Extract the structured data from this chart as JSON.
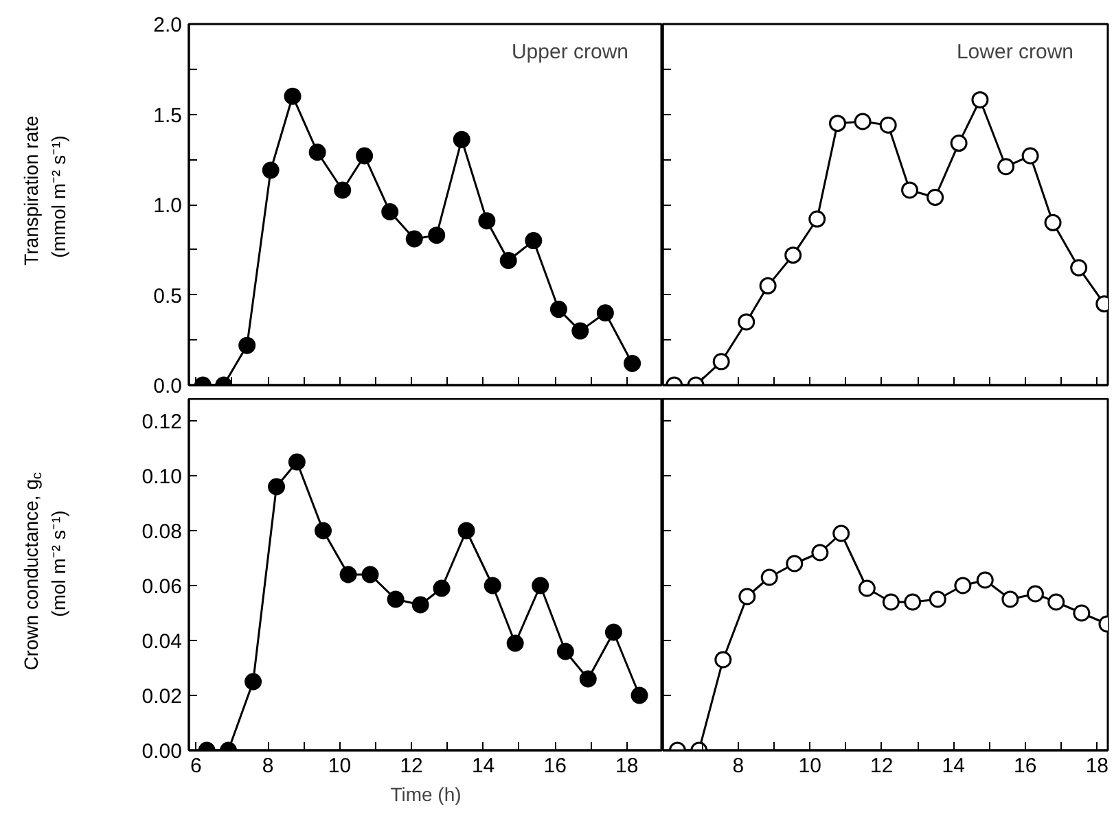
{
  "chart_data": [
    {
      "type": "line",
      "ylabel": "Transpiration rate\n(mmol m⁻² s⁻¹)",
      "annotations": [
        "Upper crown"
      ],
      "marker": "circle",
      "grid": false,
      "tick_labels": "y",
      "xlim": [
        5.8,
        19.0
      ],
      "ylim": [
        0,
        2.0
      ],
      "xticks": [
        {
          "value": 6,
          "label": null
        },
        {
          "value": 7,
          "label": null
        },
        {
          "value": 8,
          "label": null
        },
        {
          "value": 9,
          "label": null
        },
        {
          "value": 10,
          "label": null
        },
        {
          "value": 11,
          "label": null
        },
        {
          "value": 12,
          "label": null
        },
        {
          "value": 13,
          "label": null
        },
        {
          "value": 14,
          "label": null
        },
        {
          "value": 15,
          "label": null
        },
        {
          "value": 16,
          "label": null
        },
        {
          "value": 17,
          "label": null
        },
        {
          "value": 18,
          "label": null
        }
      ],
      "yticks": [
        {
          "value": 0,
          "label": "0.0"
        },
        {
          "value": 0.25,
          "label": null
        },
        {
          "value": 0.5,
          "label": "0.5"
        },
        {
          "value": 0.75,
          "label": null
        },
        {
          "value": 1.0,
          "label": "1.0"
        },
        {
          "value": 1.25,
          "label": null
        },
        {
          "value": 1.5,
          "label": "1.5"
        },
        {
          "value": 1.75,
          "label": null
        },
        {
          "value": 2.0,
          "label": "2.0"
        }
      ],
      "series": [
        {
          "color": "#000000",
          "x": [
            6.19,
            6.77,
            7.42,
            8.08,
            8.69,
            9.38,
            10.08,
            10.69,
            11.4,
            12.08,
            12.7,
            13.4,
            14.1,
            14.7,
            15.4,
            16.1,
            16.7,
            17.4,
            18.15
          ],
          "values": [
            0,
            0,
            0.22,
            1.19,
            1.6,
            1.29,
            1.08,
            1.27,
            0.96,
            0.81,
            0.83,
            1.36,
            0.91,
            0.69,
            0.8,
            0.42,
            0.3,
            0.4,
            0.12
          ]
        }
      ]
    },
    {
      "type": "line",
      "annotations": [
        "Lower crown"
      ],
      "marker": "circle",
      "grid": false,
      "tick_labels": false,
      "xlim": [
        5.9,
        18.3
      ],
      "ylim": [
        0,
        2.0
      ],
      "xticks": [
        {
          "value": 7,
          "label": null
        },
        {
          "value": 8,
          "label": null
        },
        {
          "value": 9,
          "label": null
        },
        {
          "value": 10,
          "label": null
        },
        {
          "value": 11,
          "label": null
        },
        {
          "value": 12,
          "label": null
        },
        {
          "value": 13,
          "label": null
        },
        {
          "value": 14,
          "label": null
        },
        {
          "value": 15,
          "label": null
        },
        {
          "value": 16,
          "label": null
        },
        {
          "value": 17,
          "label": null
        },
        {
          "value": 18,
          "label": null
        }
      ],
      "yticks": [
        {
          "value": 0.25,
          "label": null
        },
        {
          "value": 0.5,
          "label": null
        },
        {
          "value": 0.75,
          "label": null
        },
        {
          "value": 1.0,
          "label": null
        },
        {
          "value": 1.25,
          "label": null
        },
        {
          "value": 1.5,
          "label": null
        },
        {
          "value": 1.75,
          "label": null
        }
      ],
      "series": [
        {
          "color": "#ffffff",
          "x": [
            6.22,
            6.82,
            7.53,
            8.23,
            8.83,
            9.53,
            10.2,
            10.77,
            11.47,
            12.18,
            12.78,
            13.49,
            14.15,
            14.74,
            15.46,
            16.14,
            16.77,
            17.49,
            18.2
          ],
          "values": [
            0,
            0,
            0.13,
            0.35,
            0.55,
            0.72,
            0.92,
            1.45,
            1.46,
            1.44,
            1.08,
            1.04,
            1.34,
            1.58,
            1.21,
            1.27,
            0.9,
            0.65,
            0.45
          ]
        }
      ]
    },
    {
      "type": "line",
      "ylabel": "Crown conductance, g$_{c}$\n(mol m⁻² s⁻¹)",
      "xlabel": "Time (h)",
      "marker": "circle",
      "grid": false,
      "xlim": [
        5.8,
        19.0
      ],
      "ylim": [
        0,
        0.128
      ],
      "xticks": [
        6,
        {
          "value": 7,
          "label": null
        },
        8,
        {
          "value": 9,
          "label": null
        },
        10,
        {
          "value": 11,
          "label": null
        },
        12,
        {
          "value": 13,
          "label": null
        },
        14,
        {
          "value": 15,
          "label": null
        },
        16,
        {
          "value": 17,
          "label": null
        },
        18
      ],
      "yticks": [
        {
          "value": 0,
          "label": "0.00"
        },
        {
          "value": 0.02,
          "label": "0.02"
        },
        {
          "value": 0.04,
          "label": "0.04"
        },
        {
          "value": 0.06,
          "label": "0.06"
        },
        {
          "value": 0.08,
          "label": "0.08"
        },
        {
          "value": 0.1,
          "label": "0.10"
        },
        {
          "value": 0.12,
          "label": "0.12"
        }
      ],
      "series": [
        {
          "color": "#000000",
          "x": [
            6.3,
            6.9,
            7.59,
            8.24,
            8.81,
            9.54,
            10.24,
            10.85,
            11.56,
            12.25,
            12.84,
            13.53,
            14.26,
            14.89,
            15.59,
            16.29,
            16.92,
            17.63,
            18.35
          ],
          "values": [
            0,
            0,
            0.025,
            0.096,
            0.105,
            0.08,
            0.064,
            0.064,
            0.055,
            0.053,
            0.059,
            0.08,
            0.06,
            0.039,
            0.06,
            0.036,
            0.026,
            0.043,
            0.02
          ]
        }
      ]
    },
    {
      "type": "line",
      "marker": "circle",
      "grid": false,
      "tick_labels": "x",
      "xlim": [
        5.9,
        18.3
      ],
      "ylim": [
        0,
        0.128
      ],
      "xticks": [
        {
          "value": 7,
          "label": null
        },
        8,
        {
          "value": 9,
          "label": null
        },
        10,
        {
          "value": 11,
          "label": null
        },
        12,
        {
          "value": 13,
          "label": null
        },
        14,
        {
          "value": 15,
          "label": null
        },
        16,
        {
          "value": 17,
          "label": null
        },
        18
      ],
      "yticks": [
        {
          "value": 0.02,
          "label": null
        },
        {
          "value": 0.04,
          "label": null
        },
        {
          "value": 0.06,
          "label": null
        },
        {
          "value": 0.08,
          "label": null
        },
        {
          "value": 0.1,
          "label": null
        },
        {
          "value": 0.12,
          "label": null
        }
      ],
      "series": [
        {
          "color": "#ffffff",
          "x": [
            6.31,
            6.91,
            7.58,
            8.25,
            8.87,
            9.57,
            10.28,
            10.87,
            11.59,
            12.26,
            12.86,
            13.56,
            14.26,
            14.88,
            15.58,
            16.28,
            16.86,
            17.57,
            18.28
          ],
          "values": [
            0,
            0,
            0.033,
            0.056,
            0.063,
            0.068,
            0.072,
            0.079,
            0.059,
            0.054,
            0.054,
            0.055,
            0.06,
            0.062,
            0.055,
            0.057,
            0.054,
            0.05,
            0.046
          ]
        }
      ]
    }
  ]
}
